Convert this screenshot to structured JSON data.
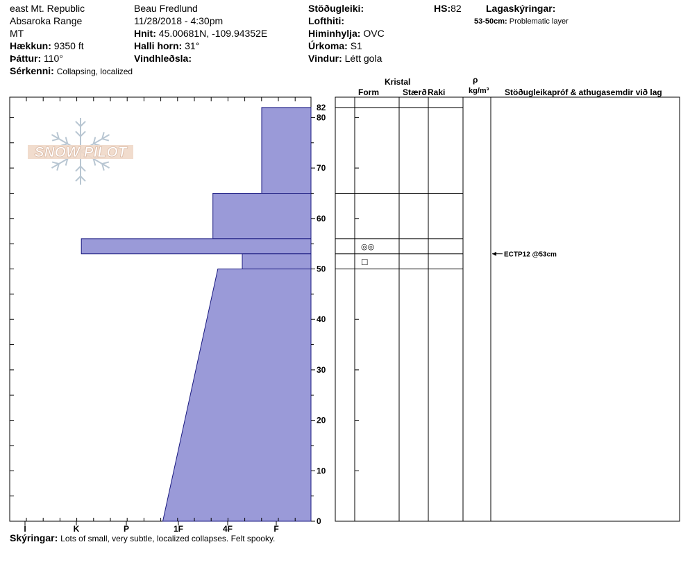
{
  "header": {
    "location": "east Mt. Republic",
    "range": "Absaroka Range",
    "state": "MT",
    "elevation_label": "Hækkun:",
    "elevation_value": "9350 ft",
    "aspect_label": "Þáttur:",
    "aspect_value": "110°",
    "features_label": "Sérkenni:",
    "features_value": "Collapsing, localized",
    "observer": "Beau  Fredlund",
    "datetime": "11/28/2018 - 4:30pm",
    "coords_label": "Hnit:",
    "coords_value": "45.00681N, -109.94352E",
    "slope_label": "Halli horn:",
    "slope_value": "31°",
    "wind_loading_label": "Vindhleðsla:",
    "stability_label": "Stöðugleiki:",
    "air_temp_label": "Lofthiti:",
    "sky_label": "Himinhylja:",
    "sky_value": "OVC",
    "precip_label": "Úrkoma:",
    "precip_value": "S1",
    "wind_label": "Vindur:",
    "wind_value": "Létt gola",
    "hs_label": "HS:",
    "hs_value": "82",
    "layer_notes_label": "Lagaskýringar:",
    "layer_note_range": "53-50cm:",
    "layer_note_text": "Problematic layer"
  },
  "logo": {
    "text": "SNOW PILOT"
  },
  "table_headers": {
    "kristal": "Kristal",
    "form": "Form",
    "size": "Stærð",
    "moisture": "Raki",
    "rho": "ρ",
    "density_unit": "kg/m³",
    "tests": "Stöðugleikapróf & athugasemdir við lag"
  },
  "footer": {
    "notes_label": "Skýringar:",
    "notes_text": "Lots of small, very subtle, localized collapses.  Felt spooky."
  },
  "test_annotation": {
    "text": "ECTP12 @53cm",
    "depth": 53
  },
  "chart_data": {
    "type": "bar",
    "title": "",
    "xlabel": "",
    "ylabel": "",
    "hardness_ticks": [
      "I",
      "K",
      "P",
      "1F",
      "4F",
      "F"
    ],
    "depth_ticks": [
      0,
      10,
      20,
      30,
      40,
      50,
      60,
      70,
      80
    ],
    "top_tick": 82,
    "ylim": [
      0,
      82
    ],
    "layers": [
      {
        "top": 82,
        "bottom": 65,
        "hardness_top": "F",
        "hardness_bottom": "F",
        "h_top": 5.7,
        "h_bottom": 5.7
      },
      {
        "top": 65,
        "bottom": 56,
        "hardness_top": "4F",
        "hardness_bottom": "4F",
        "h_top": 4.7,
        "h_bottom": 4.7
      },
      {
        "top": 56,
        "bottom": 53,
        "hardness_top": "P",
        "hardness_bottom": "P",
        "h_top": 2.1,
        "h_bottom": 2.1
      },
      {
        "top": 53,
        "bottom": 50,
        "hardness_top": "F",
        "hardness_bottom": "F",
        "h_top": 5.3,
        "h_bottom": 5.3
      },
      {
        "top": 50,
        "bottom": 0,
        "hardness_top": "4F",
        "hardness_bottom": "1F",
        "h_top": 4.8,
        "h_bottom": 3.7
      }
    ],
    "layer_boundaries": [
      82,
      65,
      56,
      53,
      50
    ],
    "grain_symbols": [
      {
        "depth_center": 54.5,
        "symbol": "◎◎"
      },
      {
        "depth_center": 51.5,
        "symbol": "□"
      }
    ],
    "colors": {
      "bar_fill": "#9a9ad8",
      "bar_stroke": "#1a1a80"
    }
  }
}
